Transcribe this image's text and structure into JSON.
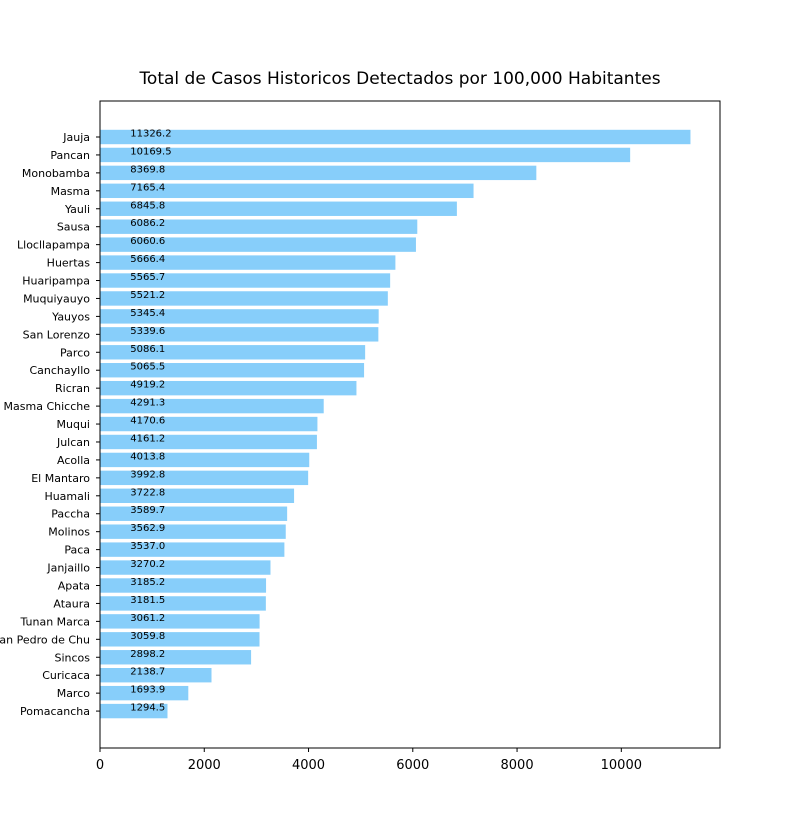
{
  "chart_data": {
    "type": "bar",
    "orientation": "horizontal",
    "title": "Total de Casos Historicos Detectados por 100,000 Habitantes",
    "xlabel": "",
    "ylabel": "",
    "xlim": [
      0,
      11893
    ],
    "xticks": [
      0,
      2000,
      4000,
      6000,
      8000,
      10000
    ],
    "grid": false,
    "bar_color": "#87cefa",
    "categories": [
      "Jauja",
      "Pancan",
      "Monobamba",
      "Masma",
      "Yauli",
      "Sausa",
      "Llocllapampa",
      "Huertas",
      "Huaripampa",
      "Muquiyauyo",
      "Yauyos",
      "San Lorenzo",
      "Parco",
      "Canchayllo",
      "Ricran",
      "Masma Chicche",
      "Muqui",
      "Julcan",
      "Acolla",
      "El Mantaro",
      "Huamali",
      "Paccha",
      "Molinos",
      "Paca",
      "Janjaillo",
      "Apata",
      "Ataura",
      "Tunan Marca",
      "San Pedro de Chu",
      "Sincos",
      "Curicaca",
      "Marco",
      "Pomacancha"
    ],
    "values": [
      11326.2,
      10169.5,
      8369.8,
      7165.4,
      6845.8,
      6086.2,
      6060.6,
      5666.4,
      5565.7,
      5521.2,
      5345.4,
      5339.6,
      5086.1,
      5065.5,
      4919.2,
      4291.3,
      4170.6,
      4161.2,
      4013.8,
      3992.8,
      3722.8,
      3589.7,
      3562.9,
      3537.0,
      3270.2,
      3185.2,
      3181.5,
      3061.2,
      3059.8,
      2898.2,
      2138.7,
      1693.9,
      1294.5
    ],
    "value_labels": [
      "11326.2",
      "10169.5",
      "8369.8",
      "7165.4",
      "6845.8",
      "6086.2",
      "6060.6",
      "5666.4",
      "5565.7",
      "5521.2",
      "5345.4",
      "5339.6",
      "5086.1",
      "5065.5",
      "4919.2",
      "4291.3",
      "4170.6",
      "4161.2",
      "4013.8",
      "3992.8",
      "3722.8",
      "3589.7",
      "3562.9",
      "3537.0",
      "3270.2",
      "3185.2",
      "3181.5",
      "3061.2",
      "3059.8",
      "2898.2",
      "2138.7",
      "1693.9",
      "1294.5"
    ],
    "value_label_anchor": 580
  }
}
